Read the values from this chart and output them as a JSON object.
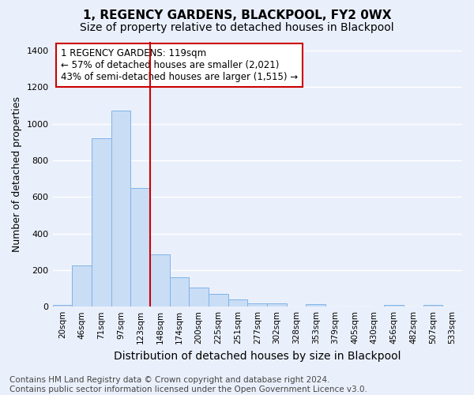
{
  "title": "1, REGENCY GARDENS, BLACKPOOL, FY2 0WX",
  "subtitle": "Size of property relative to detached houses in Blackpool",
  "xlabel": "Distribution of detached houses by size in Blackpool",
  "ylabel": "Number of detached properties",
  "categories": [
    "20sqm",
    "46sqm",
    "71sqm",
    "97sqm",
    "123sqm",
    "148sqm",
    "174sqm",
    "200sqm",
    "225sqm",
    "251sqm",
    "277sqm",
    "302sqm",
    "328sqm",
    "353sqm",
    "379sqm",
    "405sqm",
    "430sqm",
    "456sqm",
    "482sqm",
    "507sqm",
    "533sqm"
  ],
  "values": [
    10,
    225,
    920,
    1070,
    650,
    285,
    160,
    105,
    68,
    40,
    20,
    20,
    0,
    15,
    0,
    0,
    0,
    10,
    0,
    10,
    0
  ],
  "bar_color": "#c9ddf5",
  "bar_edge_color": "#7fb3e8",
  "vline_x_idx": 4,
  "vline_color": "#cc0000",
  "annotation_text": "1 REGENCY GARDENS: 119sqm\n← 57% of detached houses are smaller (2,021)\n43% of semi-detached houses are larger (1,515) →",
  "annotation_box_color": "#ffffff",
  "annotation_box_edge_color": "#cc0000",
  "ylim": [
    0,
    1450
  ],
  "yticks": [
    0,
    200,
    400,
    600,
    800,
    1000,
    1200,
    1400
  ],
  "footer": "Contains HM Land Registry data © Crown copyright and database right 2024.\nContains public sector information licensed under the Open Government Licence v3.0.",
  "bg_color": "#eaf0fb",
  "plot_bg_color": "#eaf0fb",
  "grid_color": "#ffffff",
  "title_fontsize": 11,
  "subtitle_fontsize": 10,
  "xlabel_fontsize": 10,
  "ylabel_fontsize": 9,
  "tick_fontsize": 8,
  "xtick_fontsize": 7.5,
  "footer_fontsize": 7.5,
  "annot_fontsize": 8.5
}
